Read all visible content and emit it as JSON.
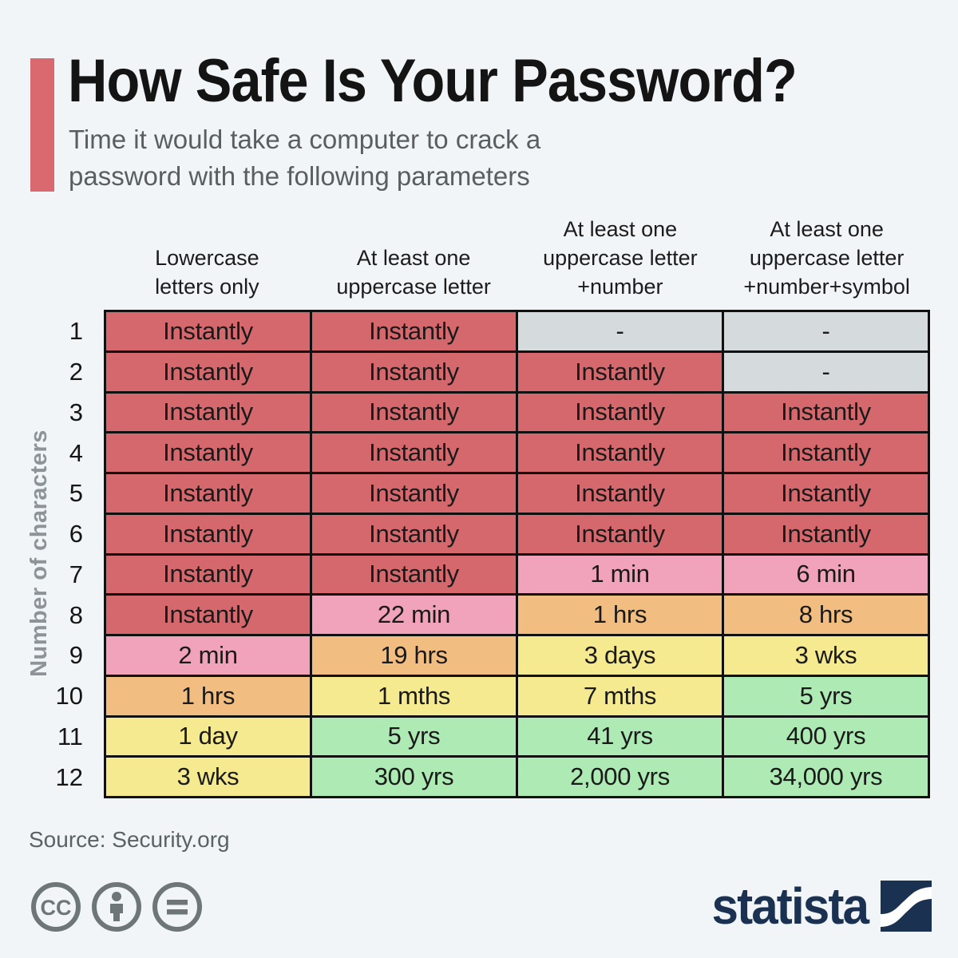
{
  "header": {
    "title": "How Safe Is Your Password?",
    "subtitle": "Time it would take a computer to crack a\npassword with the following parameters"
  },
  "axis": {
    "ylabel": "Number of characters"
  },
  "footer": {
    "source": "Source: Security.org",
    "license_icons": [
      "cc-icon",
      "attribution-person-icon",
      "no-derivatives-icon"
    ],
    "logo_text": "statista"
  },
  "colors": {
    "background": "#f1f5f8",
    "accent_red": "#d9696f",
    "cell_red": "#d4686d",
    "cell_pink": "#f0a3ba",
    "cell_orange": "#f2bd80",
    "cell_yellow": "#f5ea8f",
    "cell_green": "#aeeab3",
    "cell_gray": "#d5dadd",
    "border": "#111111",
    "statista_navy": "#1a3152",
    "icon_gray": "#6e7678"
  },
  "chart_data": {
    "type": "table",
    "title": "How Safe Is Your Password?",
    "subtitle": "Time it would take a computer to crack a password with the following parameters",
    "row_axis_label": "Number of characters",
    "columns": [
      "Lowercase\nletters only",
      "At least one\nuppercase letter",
      "At least one\nuppercase letter\n+number",
      "At least one\nuppercase letter\n+number+symbol"
    ],
    "row_labels": [
      "1",
      "2",
      "3",
      "4",
      "5",
      "6",
      "7",
      "8",
      "9",
      "10",
      "11",
      "12"
    ],
    "values": [
      [
        "Instantly",
        "Instantly",
        "-",
        "-"
      ],
      [
        "Instantly",
        "Instantly",
        "Instantly",
        "-"
      ],
      [
        "Instantly",
        "Instantly",
        "Instantly",
        "Instantly"
      ],
      [
        "Instantly",
        "Instantly",
        "Instantly",
        "Instantly"
      ],
      [
        "Instantly",
        "Instantly",
        "Instantly",
        "Instantly"
      ],
      [
        "Instantly",
        "Instantly",
        "Instantly",
        "Instantly"
      ],
      [
        "Instantly",
        "Instantly",
        "1 min",
        "6 min"
      ],
      [
        "Instantly",
        "22 min",
        "1 hrs",
        "8 hrs"
      ],
      [
        "2 min",
        "19 hrs",
        "3 days",
        "3 wks"
      ],
      [
        "1 hrs",
        "1 mths",
        "7 mths",
        "5 yrs"
      ],
      [
        "1 day",
        "5 yrs",
        "41 yrs",
        "400 yrs"
      ],
      [
        "3 wks",
        "300 yrs",
        "2,000 yrs",
        "34,000 yrs"
      ]
    ],
    "cell_tones": [
      [
        "red",
        "red",
        "gray",
        "gray"
      ],
      [
        "red",
        "red",
        "red",
        "gray"
      ],
      [
        "red",
        "red",
        "red",
        "red"
      ],
      [
        "red",
        "red",
        "red",
        "red"
      ],
      [
        "red",
        "red",
        "red",
        "red"
      ],
      [
        "red",
        "red",
        "red",
        "red"
      ],
      [
        "red",
        "red",
        "pink",
        "pink"
      ],
      [
        "red",
        "pink",
        "orange",
        "orange"
      ],
      [
        "pink",
        "orange",
        "yellow",
        "yellow"
      ],
      [
        "orange",
        "yellow",
        "yellow",
        "green"
      ],
      [
        "yellow",
        "green",
        "green",
        "green"
      ],
      [
        "yellow",
        "green",
        "green",
        "green"
      ]
    ],
    "source": "Security.org",
    "legend_position": "none",
    "grid": true
  }
}
